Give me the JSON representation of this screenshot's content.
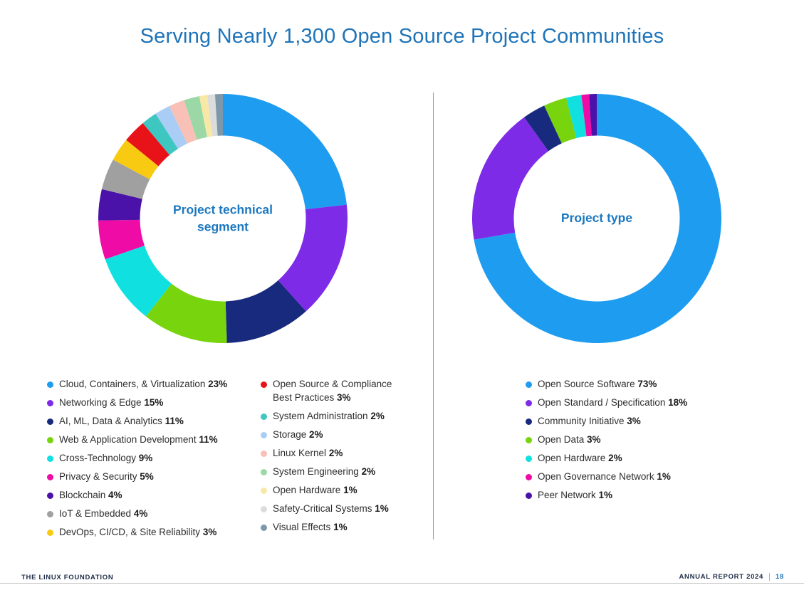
{
  "page": {
    "title": "Serving Nearly 1,300 Open Source Project Communities",
    "title_color": "#1f74b8",
    "accent_blue": "#1b78c0",
    "footer": {
      "brand": "THE LINUX FOUNDATION",
      "report": "ANNUAL REPORT 2024",
      "page_number": "18"
    }
  },
  "chart_data": [
    {
      "type": "pie",
      "variant": "donut",
      "center_label": "Project technical segment",
      "legend_position": "bottom",
      "legend_columns": [
        9,
        8
      ],
      "start_angle": 0,
      "direction": "clockwise",
      "segments": [
        {
          "label": "Cloud, Containers, & Virtualization",
          "pct": "23%",
          "value": 23,
          "color": "#1e9cf0"
        },
        {
          "label": "Networking & Edge",
          "pct": "15%",
          "value": 15,
          "color": "#7e2be8"
        },
        {
          "label": "AI, ML, Data & Analytics",
          "pct": "11%",
          "value": 11,
          "color": "#182a7d"
        },
        {
          "label": "Web & Application Development",
          "pct": "11%",
          "value": 11,
          "color": "#78d40d"
        },
        {
          "label": "Cross-Technology",
          "pct": "9%",
          "value": 9,
          "color": "#10e0e0"
        },
        {
          "label": "Privacy & Security",
          "pct": "5%",
          "value": 5,
          "color": "#ef0ba5"
        },
        {
          "label": "Blockchain",
          "pct": "4%",
          "value": 4,
          "color": "#4a12a8"
        },
        {
          "label": "IoT & Embedded",
          "pct": "4%",
          "value": 4,
          "color": "#a0a0a0"
        },
        {
          "label": "DevOps, CI/CD, & Site Reliability",
          "pct": "3%",
          "value": 3,
          "color": "#f8ca12"
        },
        {
          "label": "Open Source & Compliance Best Practices",
          "pct": "3%",
          "value": 3,
          "color": "#e81219"
        },
        {
          "label": "System Administration",
          "pct": "2%",
          "value": 2,
          "color": "#3ec6c0"
        },
        {
          "label": "Storage",
          "pct": "2%",
          "value": 2,
          "color": "#aacdf5"
        },
        {
          "label": "Linux Kernel",
          "pct": "2%",
          "value": 2,
          "color": "#f8c0b6"
        },
        {
          "label": "System Engineering",
          "pct": "2%",
          "value": 2,
          "color": "#9cd8a6"
        },
        {
          "label": "Open Hardware",
          "pct": "1%",
          "value": 1,
          "color": "#f8e8a6"
        },
        {
          "label": "Safety-Critical Systems",
          "pct": "1%",
          "value": 1,
          "color": "#dcdcdc"
        },
        {
          "label": "Visual Effects",
          "pct": "1%",
          "value": 1,
          "color": "#7e98ab"
        }
      ]
    },
    {
      "type": "pie",
      "variant": "donut",
      "center_label": "Project type",
      "legend_position": "bottom",
      "legend_columns": [
        7
      ],
      "start_angle": 0,
      "direction": "clockwise",
      "segments": [
        {
          "label": "Open Source Software",
          "pct": "73%",
          "value": 73,
          "color": "#1e9cf0"
        },
        {
          "label": "Open Standard / Specification",
          "pct": "18%",
          "value": 18,
          "color": "#7e2be8"
        },
        {
          "label": "Community Initiative",
          "pct": "3%",
          "value": 3,
          "color": "#182a7d"
        },
        {
          "label": "Open Data",
          "pct": "3%",
          "value": 3,
          "color": "#78d40d"
        },
        {
          "label": "Open Hardware",
          "pct": "2%",
          "value": 2,
          "color": "#10e0e0"
        },
        {
          "label": "Open Governance Network",
          "pct": "1%",
          "value": 1,
          "color": "#ef0ba5"
        },
        {
          "label": "Peer Network",
          "pct": "1%",
          "value": 1,
          "color": "#4a12a8"
        }
      ]
    }
  ]
}
